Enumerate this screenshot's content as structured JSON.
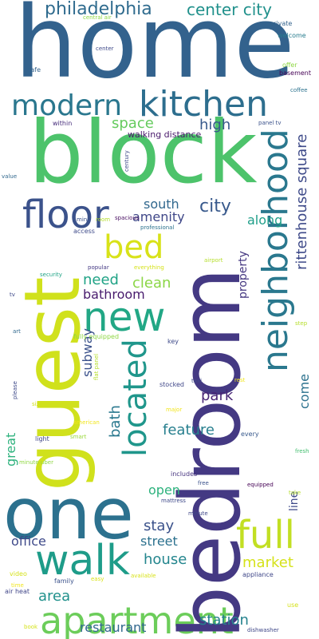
{
  "words": {
    "home": "home",
    "block": "block",
    "guest": "guest",
    "bedroom": "bedroom",
    "one": "one",
    "modern": "modern",
    "kitchen": "kitchen",
    "floor": "floor",
    "new": "new",
    "bed": "bed",
    "walk": "walk",
    "apartment": "apartment",
    "full": "full",
    "neighborhood": "neighborhood",
    "located": "located",
    "philadelphia": "philadelphia",
    "center_city": "center city",
    "space": "space",
    "high": "high",
    "walking_distance": "walking distance",
    "south": "south",
    "city": "city",
    "amenity": "amenity",
    "along": "along",
    "rittenhouse_square": "rittenhouse square",
    "need": "need",
    "clean": "clean",
    "bathroom": "bathroom",
    "property": "property",
    "subway": "subway",
    "bath": "bath",
    "park": "park",
    "feature": "feature",
    "come": "come",
    "great": "great",
    "open": "open",
    "line": "line",
    "stay": "stay",
    "office": "office",
    "street": "street",
    "house": "house",
    "market": "market",
    "area": "area",
    "station": "station",
    "restaurant": "restaurant",
    "private": "private",
    "central_air": "central air",
    "welcome": "welcome",
    "center": "center",
    "offer": "offer",
    "basement": "basement",
    "cafe": "cafe",
    "coffee": "coffee",
    "within": "within",
    "panel_tv": "panel tv",
    "century": "century",
    "value": "value",
    "min": "min",
    "room": "room",
    "spacious": "spacious",
    "professional": "professional",
    "access": "access",
    "airport": "airport",
    "popular": "popular",
    "everything": "everything",
    "security": "security",
    "tv": "tv",
    "step": "step",
    "art": "art",
    "fully_equipped": "fully equipped",
    "key": "key",
    "flat_panel": "flat panel",
    "taxi": "taxi",
    "rest": "rest",
    "stocked": "stocked",
    "please": "please",
    "size": "size",
    "major": "major",
    "american": "american",
    "every": "every",
    "light": "light",
    "smart": "smart",
    "fresh": "fresh",
    "minute_uber": "minute uber",
    "includes": "includes",
    "free": "free",
    "equipped": "equipped",
    "take": "take",
    "mattress": "mattress",
    "minute": "minute",
    "appliance": "appliance",
    "video": "video",
    "easy": "easy",
    "available": "available",
    "family": "family",
    "time": "time",
    "air_heat": "air heat",
    "use": "use",
    "book": "book",
    "dishwasher": "dishwasher"
  }
}
